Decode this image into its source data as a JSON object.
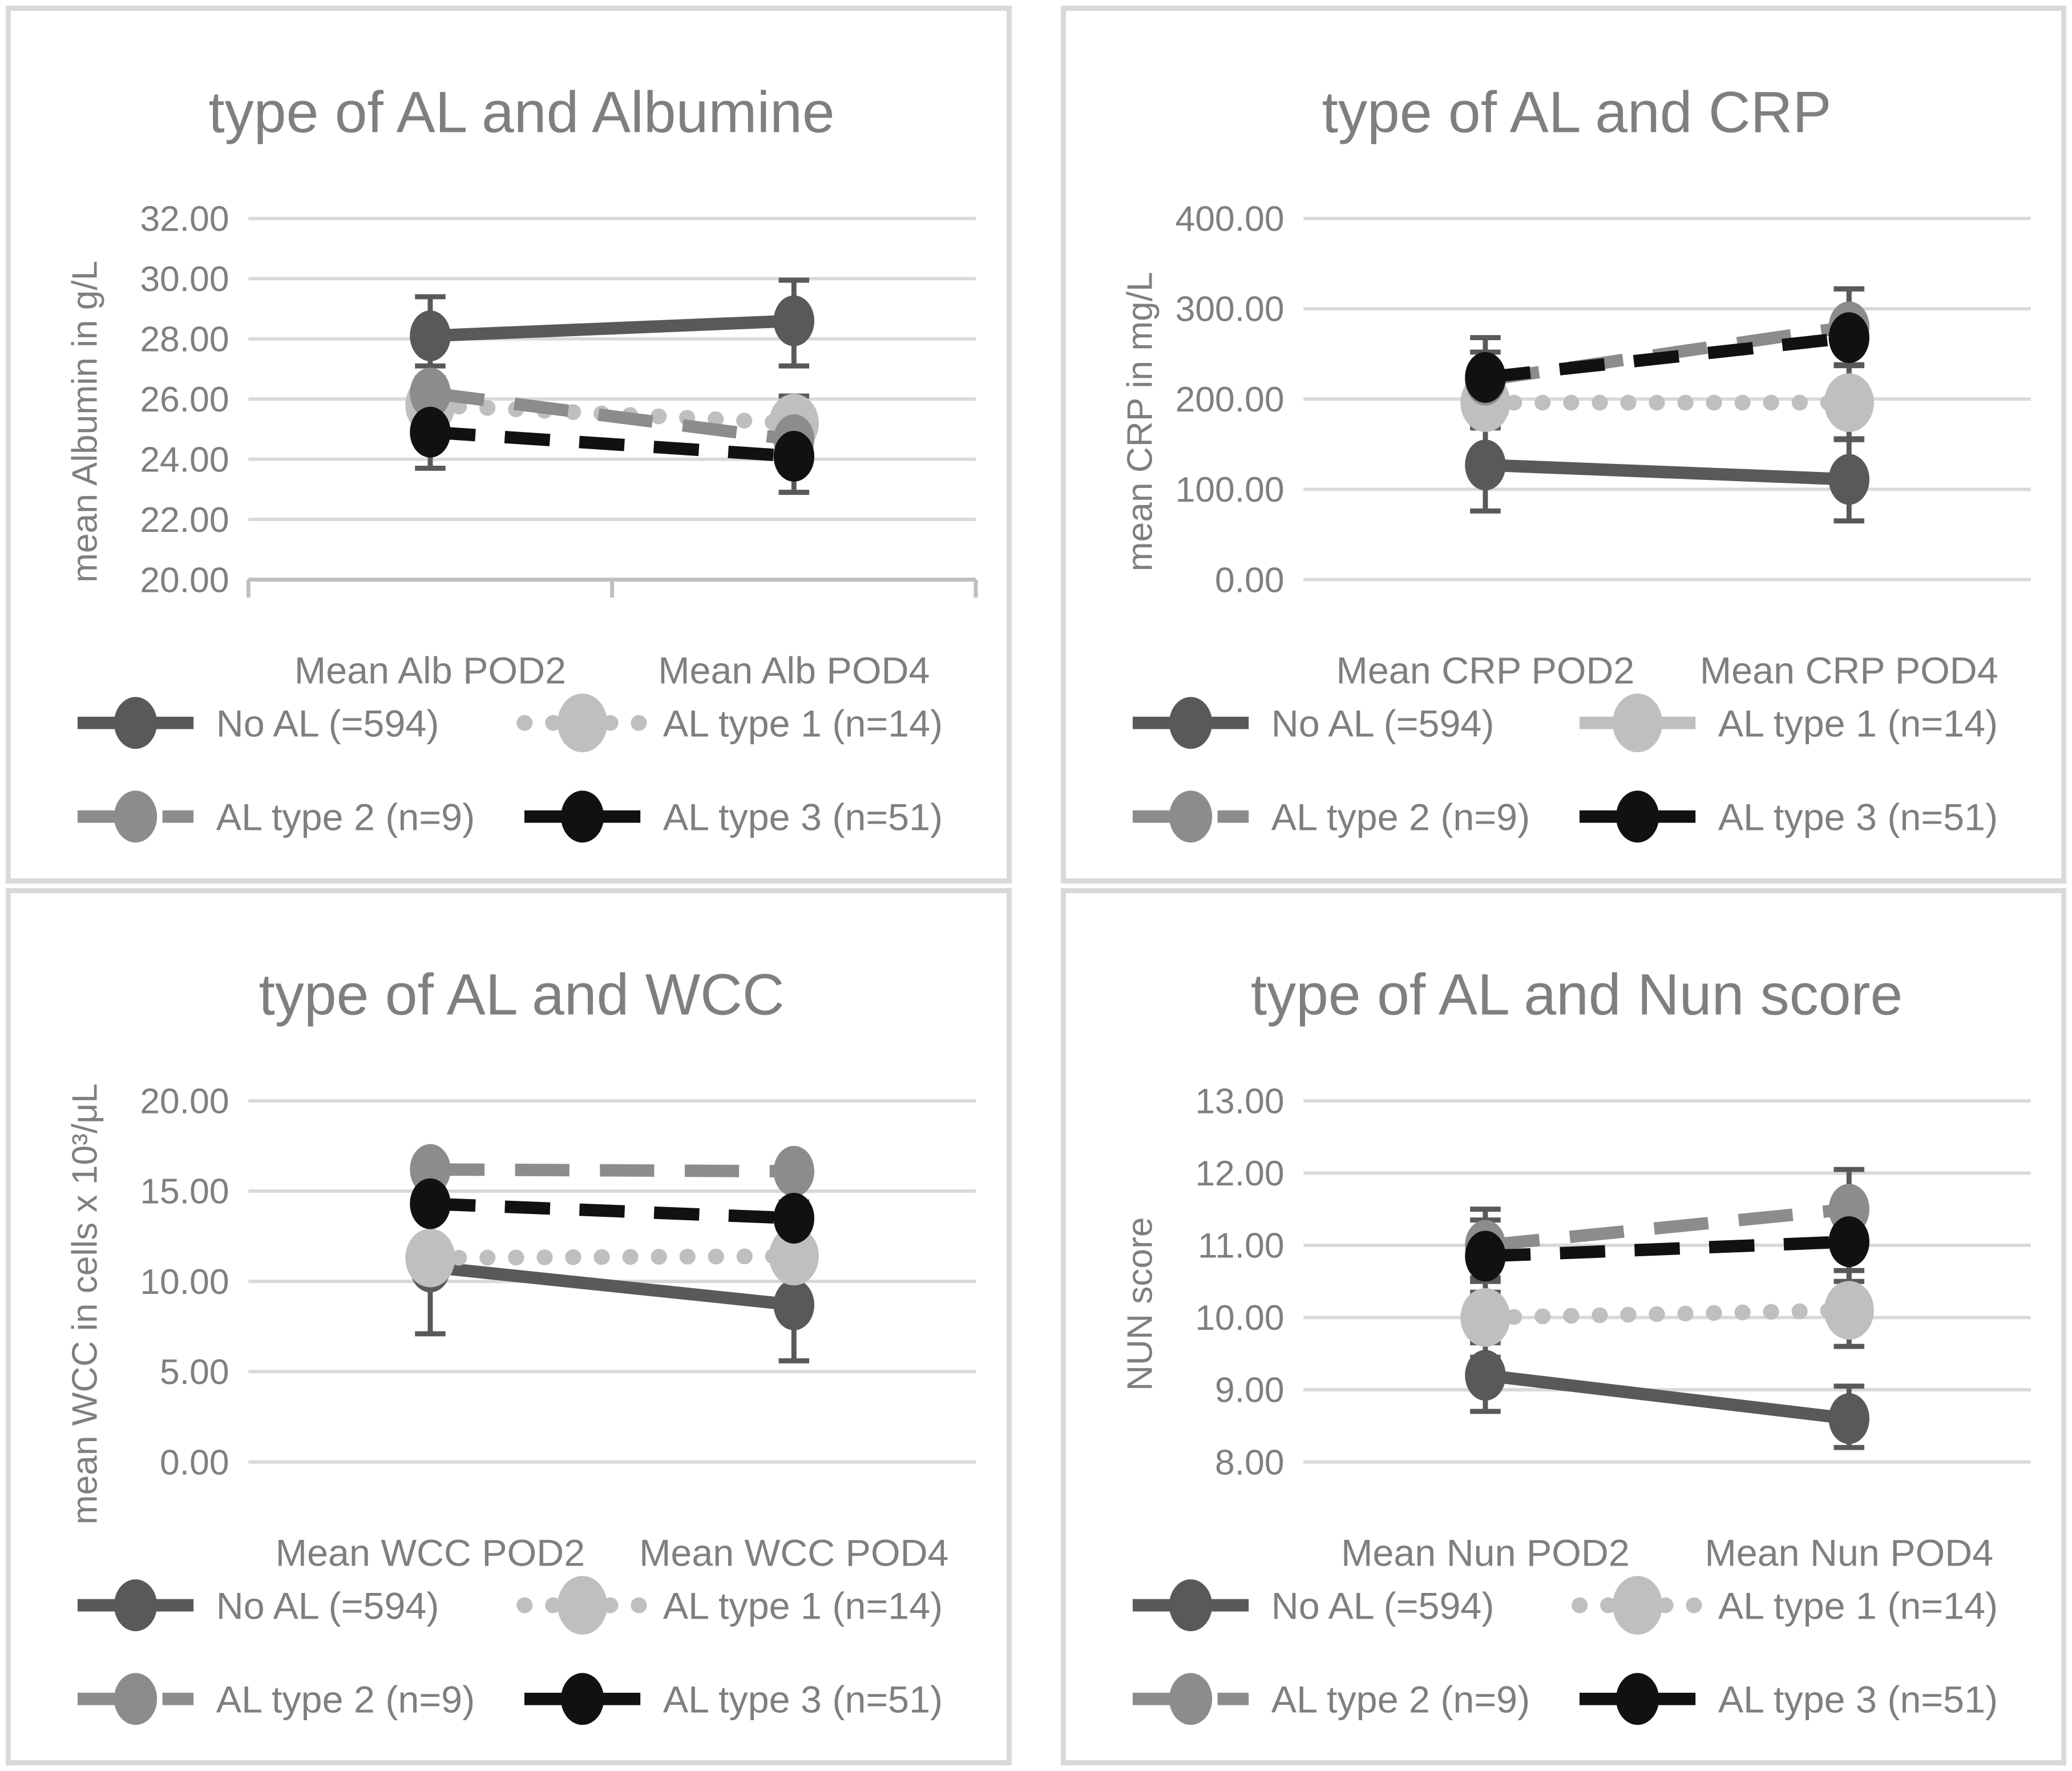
{
  "page": {
    "background": "#ffffff",
    "panel_border_color": "#D9D9D9",
    "gridline_color": "#D9D9D9",
    "axis_line_color": "#BFBFBF",
    "text_color": "#7F7F7F",
    "error_bar_color": "#595959"
  },
  "chart_data": {
    "type": "line",
    "layout": "2x2-grid",
    "legend_position": "bottom",
    "grid": "horizontal-on",
    "series_meta": [
      {
        "id": "no_al",
        "label": "No AL (=594)",
        "color": "#595959",
        "style": "solid"
      },
      {
        "id": "type1",
        "label": "AL type 1 (n=14)",
        "color": "#BFBFBF",
        "style": "dotted"
      },
      {
        "id": "type2",
        "label": "AL type 2 (n=9)",
        "color": "#8C8C8C",
        "style": "dashed"
      },
      {
        "id": "type3",
        "label": "AL type 3 (n=51)",
        "color": "#111111",
        "style": "dashed-short"
      }
    ],
    "charts": [
      {
        "id": "albumine",
        "title": "type of AL and Albumine",
        "ylabel": "mean Albumin in g/L",
        "categories": [
          "Mean Alb POD2",
          "Mean Alb POD4"
        ],
        "ylim": [
          20,
          32
        ],
        "ystep": 2,
        "tick_format_decimals": 2,
        "axis_baseline_ticks": true,
        "legend_style_overrides": {},
        "series": [
          {
            "id": "no_al",
            "values": [
              28.1,
              28.6
            ],
            "err_lo": [
              26.7,
              27.1
            ],
            "err_hi": [
              29.4,
              29.95
            ]
          },
          {
            "id": "type1",
            "values": [
              25.8,
              25.2
            ],
            "err_lo": [
              24.9,
              24.3
            ],
            "err_hi": [
              26.7,
              26.1
            ]
          },
          {
            "id": "type2",
            "values": [
              26.2,
              24.65
            ],
            "err_lo": [
              25.3,
              23.6
            ],
            "err_hi": [
              27.1,
              25.7
            ]
          },
          {
            "id": "type3",
            "values": [
              24.9,
              24.1
            ],
            "err_lo": [
              23.7,
              22.9
            ],
            "err_hi": [
              26.1,
              25.3
            ]
          }
        ]
      },
      {
        "id": "crp",
        "title": "type of AL and CRP",
        "ylabel": "mean CRP in mg/L",
        "categories": [
          "Mean CRP POD2",
          "Mean CRP POD4"
        ],
        "ylim": [
          0,
          400
        ],
        "ystep": 100,
        "tick_format_decimals": 2,
        "axis_baseline_ticks": false,
        "legend_style_overrides": {
          "type1": "solid"
        },
        "series": [
          {
            "id": "no_al",
            "values": [
              127,
              111
            ],
            "err_lo": [
              76,
              65
            ],
            "err_hi": [
              170,
              156
            ]
          },
          {
            "id": "type1",
            "values": [
              196,
              196
            ],
            "err_lo": [
              168,
              155
            ],
            "err_hi": [
              224,
              237
            ]
          },
          {
            "id": "type2",
            "values": [
              221,
              280
            ],
            "err_lo": [
              190,
              238
            ],
            "err_hi": [
              252,
              322
            ]
          },
          {
            "id": "type3",
            "values": [
              224,
              268
            ],
            "err_lo": [
              180,
              214
            ],
            "err_hi": [
              268,
              322
            ]
          }
        ]
      },
      {
        "id": "wcc",
        "title": "type of AL and WCC",
        "ylabel": "mean WCC in cells x 10³/μL",
        "categories": [
          "Mean WCC POD2",
          "Mean WCC POD4"
        ],
        "ylim": [
          0,
          20
        ],
        "ystep": 5,
        "tick_format_decimals": 2,
        "axis_baseline_ticks": false,
        "legend_style_overrides": {},
        "series": [
          {
            "id": "no_al",
            "values": [
              10.8,
              8.7
            ],
            "err_lo": [
              7.1,
              5.6
            ],
            "err_hi": [
              14.0,
              11.8
            ]
          },
          {
            "id": "type1",
            "values": [
              11.3,
              11.4
            ],
            "err_lo": [
              10.4,
              10.5
            ],
            "err_hi": [
              12.2,
              12.3
            ]
          },
          {
            "id": "type2",
            "values": [
              16.2,
              16.1
            ],
            "err_lo": [
              15.4,
              15.3
            ],
            "err_hi": [
              17.0,
              16.9
            ]
          },
          {
            "id": "type3",
            "values": [
              14.3,
              13.5
            ],
            "err_lo": [
              13.5,
              12.6
            ],
            "err_hi": [
              15.1,
              14.4
            ]
          }
        ]
      },
      {
        "id": "nun",
        "title": "type of AL and Nun score",
        "ylabel": "NUN score",
        "categories": [
          "Mean Nun POD2",
          "Mean Nun POD4"
        ],
        "ylim": [
          8,
          13
        ],
        "ystep": 1,
        "tick_format_decimals": 2,
        "axis_baseline_ticks": false,
        "legend_style_overrides": {},
        "series": [
          {
            "id": "no_al",
            "values": [
              9.2,
              8.6
            ],
            "err_lo": [
              8.7,
              8.2
            ],
            "err_hi": [
              9.65,
              9.05
            ]
          },
          {
            "id": "type1",
            "values": [
              10.0,
              10.1
            ],
            "err_lo": [
              9.45,
              9.6
            ],
            "err_hi": [
              10.55,
              10.65
            ]
          },
          {
            "id": "type2",
            "values": [
              11.0,
              11.5
            ],
            "err_lo": [
              10.5,
              10.95
            ],
            "err_hi": [
              11.5,
              12.05
            ]
          },
          {
            "id": "type3",
            "values": [
              10.85,
              11.05
            ],
            "err_lo": [
              10.35,
              10.5
            ],
            "err_hi": [
              11.35,
              11.6
            ]
          }
        ]
      }
    ]
  }
}
